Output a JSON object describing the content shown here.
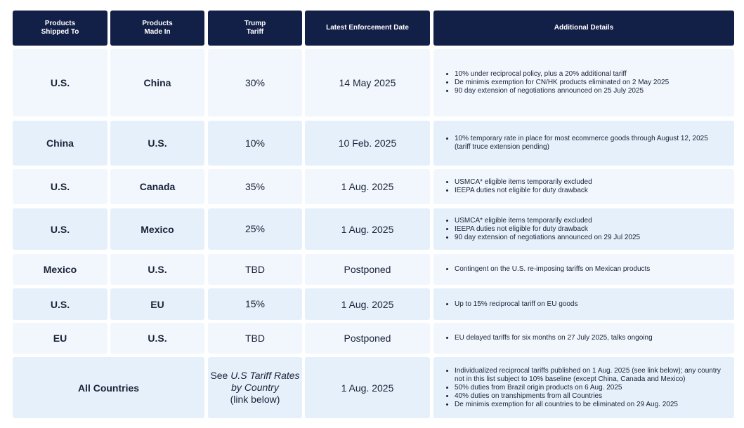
{
  "header": [
    [
      "Products",
      "Shipped To"
    ],
    [
      "Products",
      "Made In"
    ],
    [
      "Trump",
      "Tariff"
    ],
    [
      "Latest Enforcement Date"
    ],
    [
      "Additional Details"
    ]
  ],
  "rows": [
    {
      "shipped_to": "U.S.",
      "made_in": "China",
      "tariff": "30%",
      "date": "14 May 2025",
      "details": [
        "10% under reciprocal policy, plus a 20% additional tariff",
        "De minimis exemption for CN/HK products eliminated on 2 May 2025",
        "90 day extension of negotiations announced on 25 July 2025"
      ]
    },
    {
      "shipped_to": "China",
      "made_in": "U.S.",
      "tariff": "10%",
      "date": "10 Feb. 2025",
      "details": [
        "10% temporary rate in place for most ecommerce goods through August 12, 2025 (tariff truce extension pending)"
      ]
    },
    {
      "shipped_to": "U.S.",
      "made_in": "Canada",
      "tariff": "35%",
      "date": "1 Aug. 2025",
      "details": [
        "USMCA* eligible items temporarily excluded",
        "IEEPA duties not eligible for duty drawback"
      ]
    },
    {
      "shipped_to": "U.S.",
      "made_in": "Mexico",
      "tariff": "25%",
      "date": "1 Aug. 2025",
      "details": [
        "USMCA* eligible items temporarily excluded",
        "IEEPA duties not eligible for duty drawback",
        "90 day extension of negotiations announced on 29 Jul 2025"
      ]
    },
    {
      "shipped_to": "Mexico",
      "made_in": "U.S.",
      "tariff": "TBD",
      "date": "Postponed",
      "details": [
        "Contingent on the U.S. re-imposing tariffs on Mexican products"
      ]
    },
    {
      "shipped_to": "U.S.",
      "made_in": "EU",
      "tariff": "15%",
      "date": "1 Aug. 2025",
      "details": [
        "Up to 15% reciprocal tariff on EU goods"
      ]
    },
    {
      "shipped_to": "EU",
      "made_in": "U.S.",
      "tariff": "TBD",
      "date": "Postponed",
      "details": [
        "EU delayed tariffs for six months on 27 July 2025, talks ongoing"
      ]
    },
    {
      "region": "All Countries",
      "tariff": {
        "before": "See",
        "link": "U.S Tariff Rates by Country",
        "after": "(link below)"
      },
      "date": "1 Aug. 2025",
      "details": [
        "Individualized reciprocal tariffs published on 1 Aug. 2025 (see link below); any country not in this list subject to 10% baseline (except China, Canada and Mexico)",
        "50% duties from Brazil origin products on 6 Aug. 2025",
        "40% duties on transhipments from all Countries",
        "De minimis exemption for all countries to be eliminated on 29 Aug. 2025"
      ]
    }
  ]
}
